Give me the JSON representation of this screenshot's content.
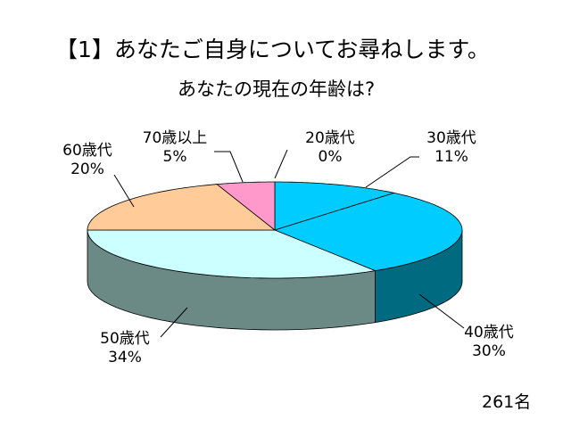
{
  "slide": {
    "title": "【1】あなたご自身についてお尋ねします。",
    "subtitle": "あなたの現在の年齢は?",
    "respondents": "261名"
  },
  "chart_data": {
    "type": "pie",
    "style": "3d",
    "categories": [
      "20歳代",
      "30歳代",
      "40歳代",
      "50歳代",
      "60歳代",
      "70歳以上"
    ],
    "values": [
      0,
      11,
      30,
      34,
      20,
      5
    ],
    "value_labels": [
      "0%",
      "11%",
      "30%",
      "34%",
      "20%",
      "5%"
    ],
    "colors": [
      "#2b2f8f",
      "#00ccff",
      "#00ccff",
      "#ccffff",
      "#ffcc99",
      "#ff99cc"
    ],
    "side_colors": [
      "#1a1c5a",
      "#006a80",
      "#006a80",
      "#6b8a86",
      "#a08060",
      "#a0607f"
    ],
    "legend": "none"
  }
}
